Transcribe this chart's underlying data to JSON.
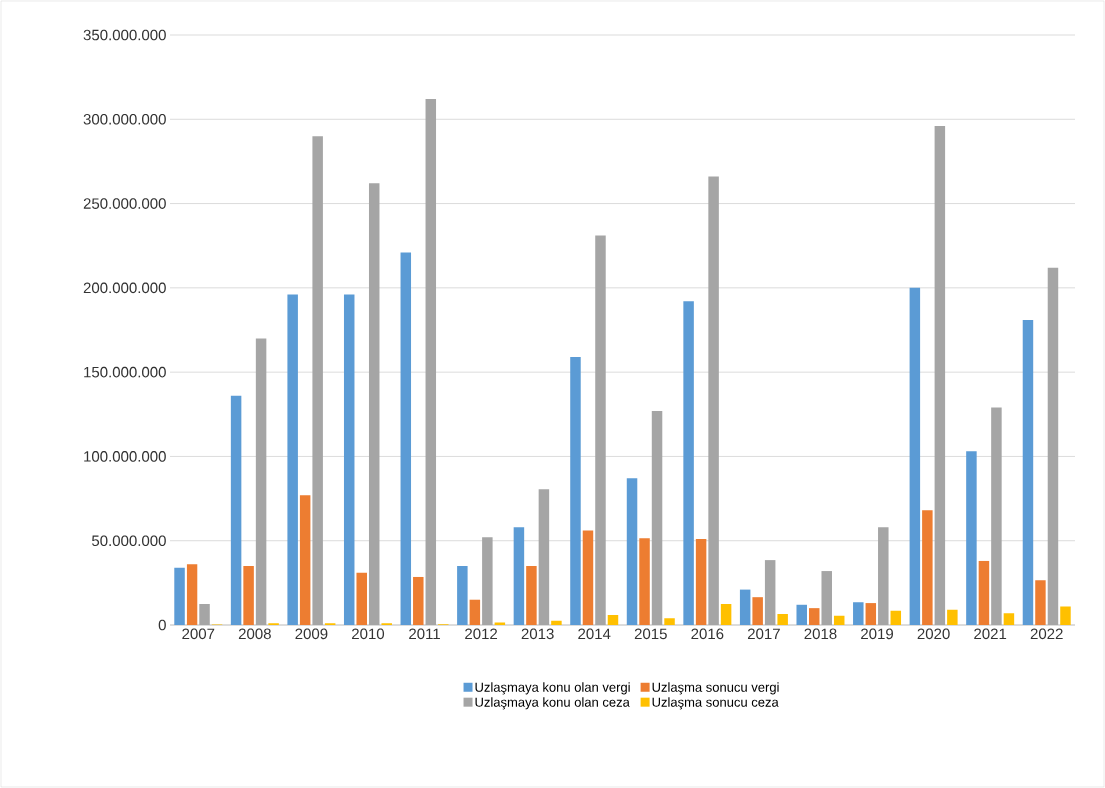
{
  "chart_data": {
    "type": "bar",
    "categories": [
      "2007",
      "2008",
      "2009",
      "2010",
      "2011",
      "2012",
      "2013",
      "2014",
      "2015",
      "2016",
      "2017",
      "2018",
      "2019",
      "2020",
      "2021",
      "2022"
    ],
    "series": [
      {
        "name": "Uzlaşmaya konu olan vergi",
        "color": "#5b9bd5",
        "values": [
          34000000,
          136000000,
          196000000,
          196000000,
          221000000,
          35000000,
          58000000,
          159000000,
          87000000,
          192000000,
          21000000,
          12000000,
          13500000,
          200000000,
          103000000,
          181000000
        ]
      },
      {
        "name": "Uzlaşma sonucu vergi",
        "color": "#ed7d31",
        "values": [
          36000000,
          35000000,
          77000000,
          31000000,
          28500000,
          15000000,
          35000000,
          56000000,
          51500000,
          51000000,
          16500000,
          10000000,
          13000000,
          68000000,
          38000000,
          26500000
        ]
      },
      {
        "name": "Uzlaşmaya konu olan ceza",
        "color": "#a5a5a5",
        "values": [
          12500000,
          170000000,
          290000000,
          262000000,
          312000000,
          52000000,
          80500000,
          231000000,
          127000000,
          266000000,
          38500000,
          32000000,
          58000000,
          296000000,
          129000000,
          212000000
        ]
      },
      {
        "name": "Uzlaşma sonucu ceza",
        "color": "#ffc000",
        "values": [
          300000,
          1000000,
          1000000,
          1000000,
          500000,
          1500000,
          2500000,
          6000000,
          4000000,
          12500000,
          6500000,
          5500000,
          8500000,
          9000000,
          7000000,
          11000000
        ]
      }
    ],
    "ylim": [
      0,
      350000000
    ],
    "yticks": [
      0,
      {
        "value": 50000000,
        "label": "50.000.000"
      },
      {
        "value": 100000000,
        "label": "100.000.000"
      },
      {
        "value": 150000000,
        "label": "150.000.000"
      },
      {
        "value": 200000000,
        "label": "200.000.000"
      },
      {
        "value": 250000000,
        "label": "250.000.000"
      },
      {
        "value": 300000000,
        "label": "300.000.000"
      },
      {
        "value": 350000000,
        "label": "350.000.000"
      }
    ],
    "grid": "y",
    "legend": "bottom"
  }
}
